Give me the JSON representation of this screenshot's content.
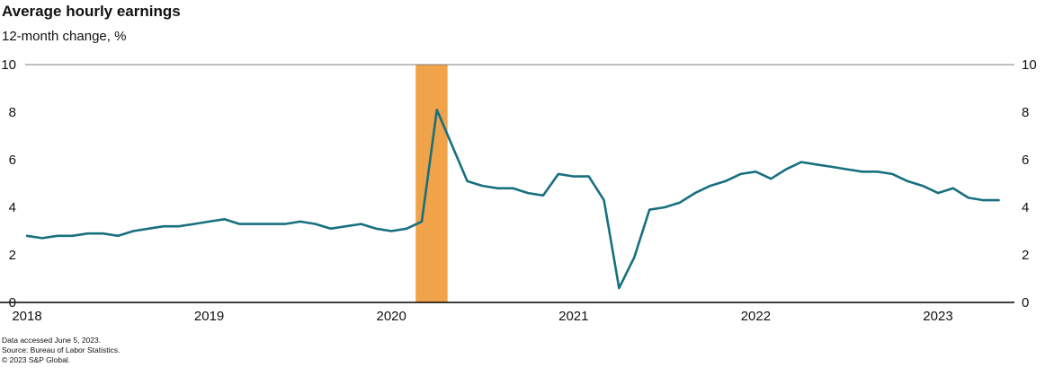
{
  "header": {
    "title": "Average hourly earnings",
    "subtitle": "12-month change, %"
  },
  "footer": {
    "line1": "Data accessed June 5, 2023.",
    "line2": "Source: Bureau of Labor Statistics.",
    "line3": "© 2023  S&P Global."
  },
  "chart_data": {
    "type": "line",
    "title": "Average hourly earnings",
    "subtitle": "12-month change, %",
    "ylabel": "12-month change, %",
    "ylim": [
      0,
      10
    ],
    "yticks": [
      0,
      2,
      4,
      6,
      8,
      10
    ],
    "x_start": "2018-01",
    "x_tick_years": [
      "2018",
      "2019",
      "2020",
      "2021",
      "2022",
      "2023"
    ],
    "grid": "off",
    "legend": "none",
    "line_color": "#17707f",
    "band_color": "#f0a348",
    "recession_band": {
      "start": "2020-02",
      "end": "2020-04",
      "start_month_index": 25.6,
      "end_month_index": 27.7
    },
    "series": [
      {
        "name": "Average hourly earnings, 12-month % change",
        "start_month": "2018-01",
        "values": [
          2.8,
          2.7,
          2.8,
          2.8,
          2.9,
          2.9,
          2.8,
          3.0,
          3.1,
          3.2,
          3.2,
          3.3,
          3.4,
          3.5,
          3.3,
          3.3,
          3.3,
          3.3,
          3.4,
          3.3,
          3.1,
          3.2,
          3.3,
          3.1,
          3.0,
          3.1,
          3.4,
          8.1,
          6.6,
          5.1,
          4.9,
          4.8,
          4.8,
          4.6,
          4.5,
          5.4,
          5.3,
          5.3,
          4.3,
          0.6,
          1.9,
          3.9,
          4.0,
          4.2,
          4.6,
          4.9,
          5.1,
          5.4,
          5.5,
          5.2,
          5.6,
          5.9,
          5.8,
          5.7,
          5.6,
          5.5,
          5.5,
          5.4,
          5.1,
          4.9,
          4.6,
          4.8,
          4.4,
          4.3,
          4.3
        ]
      }
    ]
  }
}
